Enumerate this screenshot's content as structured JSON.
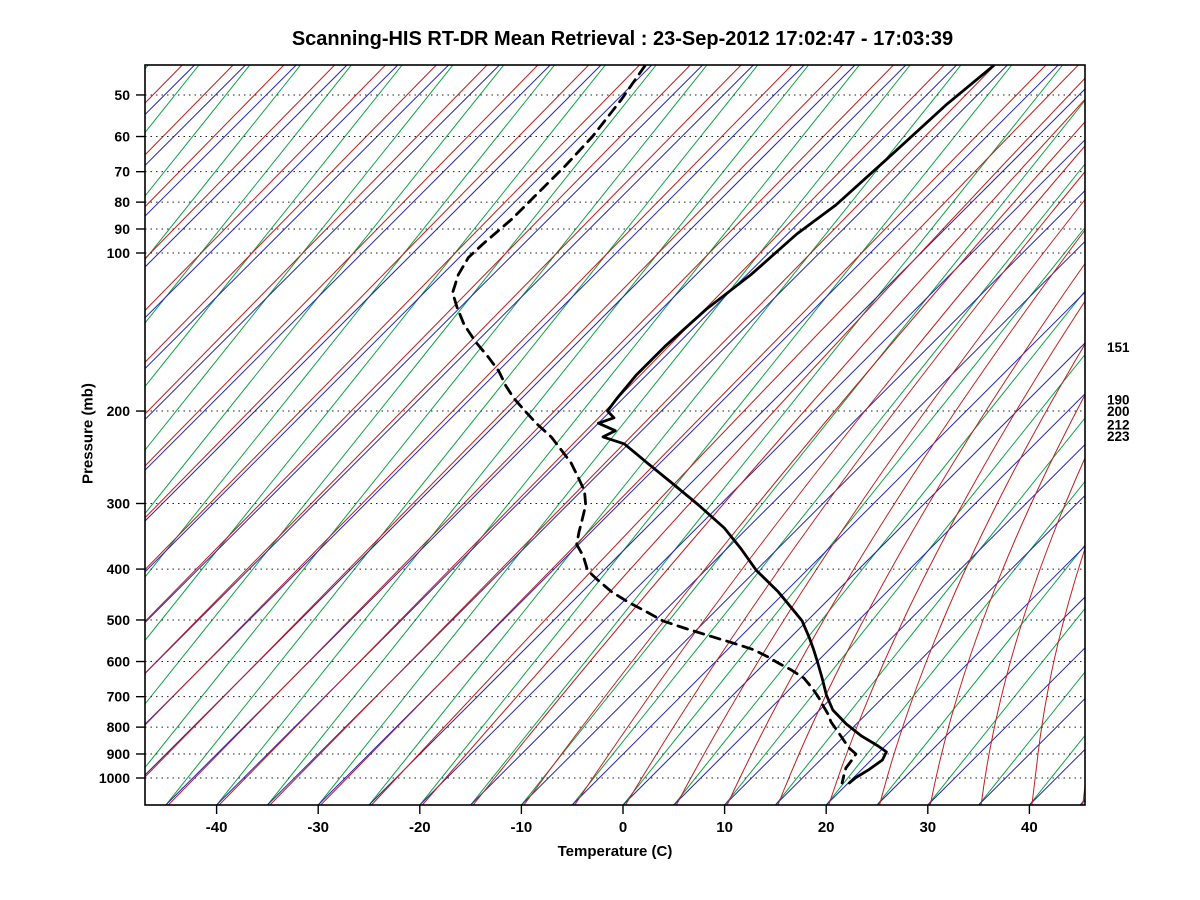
{
  "chart_data": {
    "type": "line",
    "subtype": "skewt-logp-sounding",
    "title": "Scanning-HIS RT-DR Mean Retrieval : 23-Sep-2012 17:02:47 - 17:03:39",
    "xlabel": "Temperature (C)",
    "ylabel": "Pressure (mb)",
    "x_ticks": [
      -40,
      -30,
      -20,
      -10,
      0,
      10,
      20,
      30,
      40
    ],
    "y_ticks": [
      50,
      60,
      70,
      80,
      90,
      100,
      200,
      300,
      400,
      500,
      600,
      700,
      800,
      900,
      1000
    ],
    "x_range_at_surface": [
      -46.5,
      45.5
    ],
    "pressure_range_mb": [
      44,
      1125
    ],
    "grid": "isobars-dotted, skewed isotherms, adiabats, mixing lines",
    "legend_position": "none",
    "right_level_labels": [
      151,
      190,
      200,
      212,
      223
    ],
    "line_step_c": 5,
    "colors": {
      "isotherm": "#2424b4",
      "adiabat": "#c02020",
      "mixing_line": "#0aa044",
      "isobar": "#222222",
      "profile": "#000000"
    },
    "series": [
      {
        "name": "temperature",
        "style": "solid",
        "points": [
          [
            44,
            -36.3
          ],
          [
            52,
            -37.1
          ],
          [
            66,
            -37.6
          ],
          [
            81,
            -38.1
          ],
          [
            92,
            -39.1
          ],
          [
            110,
            -39.6
          ],
          [
            128,
            -40.6
          ],
          [
            150,
            -41.0
          ],
          [
            171,
            -41.0
          ],
          [
            190,
            -40.6
          ],
          [
            200,
            -40.3
          ],
          [
            206,
            -39.0
          ],
          [
            211,
            -40.0
          ],
          [
            218,
            -37.6
          ],
          [
            224,
            -38.2
          ],
          [
            231,
            -35.4
          ],
          [
            250,
            -31.5
          ],
          [
            273,
            -27.1
          ],
          [
            302,
            -22.1
          ],
          [
            334,
            -17.3
          ],
          [
            365,
            -13.7
          ],
          [
            402,
            -10.0
          ],
          [
            442,
            -5.7
          ],
          [
            479,
            -2.4
          ],
          [
            502,
            -0.5
          ],
          [
            541,
            1.9
          ],
          [
            570,
            3.5
          ],
          [
            604,
            5.2
          ],
          [
            645,
            7.1
          ],
          [
            695,
            9.2
          ],
          [
            742,
            11.3
          ],
          [
            789,
            14.0
          ],
          [
            832,
            16.7
          ],
          [
            869,
            19.3
          ],
          [
            892,
            20.7
          ],
          [
            924,
            21.1
          ],
          [
            966,
            20.7
          ],
          [
            1000,
            20.2
          ],
          [
            1022,
            20.1
          ]
        ]
      },
      {
        "name": "dewpoint",
        "style": "dashed",
        "points": [
          [
            44,
            -70.6
          ],
          [
            51,
            -69.6
          ],
          [
            60,
            -68.8
          ],
          [
            68,
            -68.6
          ],
          [
            78,
            -68.6
          ],
          [
            86,
            -68.6
          ],
          [
            96,
            -69.0
          ],
          [
            102,
            -69.1
          ],
          [
            110,
            -68.4
          ],
          [
            119,
            -67.2
          ],
          [
            127,
            -65.3
          ],
          [
            137,
            -62.9
          ],
          [
            148,
            -60.0
          ],
          [
            158,
            -57.3
          ],
          [
            168,
            -54.9
          ],
          [
            179,
            -52.8
          ],
          [
            189,
            -50.8
          ],
          [
            201,
            -48.2
          ],
          [
            212,
            -45.9
          ],
          [
            224,
            -43.3
          ],
          [
            238,
            -40.9
          ],
          [
            251,
            -38.8
          ],
          [
            268,
            -36.6
          ],
          [
            284,
            -34.7
          ],
          [
            302,
            -33.2
          ],
          [
            322,
            -32.1
          ],
          [
            340,
            -31.2
          ],
          [
            359,
            -30.2
          ],
          [
            378,
            -28.4
          ],
          [
            402,
            -26.6
          ],
          [
            420,
            -24.6
          ],
          [
            442,
            -22.1
          ],
          [
            462,
            -19.5
          ],
          [
            484,
            -16.5
          ],
          [
            502,
            -14.2
          ],
          [
            519,
            -11.2
          ],
          [
            537,
            -8.0
          ],
          [
            554,
            -5.0
          ],
          [
            570,
            -2.4
          ],
          [
            588,
            -0.3
          ],
          [
            604,
            1.3
          ],
          [
            622,
            3.2
          ],
          [
            645,
            5.3
          ],
          [
            674,
            7.1
          ],
          [
            701,
            8.6
          ],
          [
            730,
            10.0
          ],
          [
            755,
            11.2
          ],
          [
            782,
            12.3
          ],
          [
            809,
            13.6
          ],
          [
            844,
            15.2
          ],
          [
            876,
            16.6
          ],
          [
            900,
            17.9
          ],
          [
            924,
            18.1
          ],
          [
            957,
            18.3
          ],
          [
            993,
            18.9
          ],
          [
            1022,
            19.4
          ]
        ]
      }
    ]
  }
}
